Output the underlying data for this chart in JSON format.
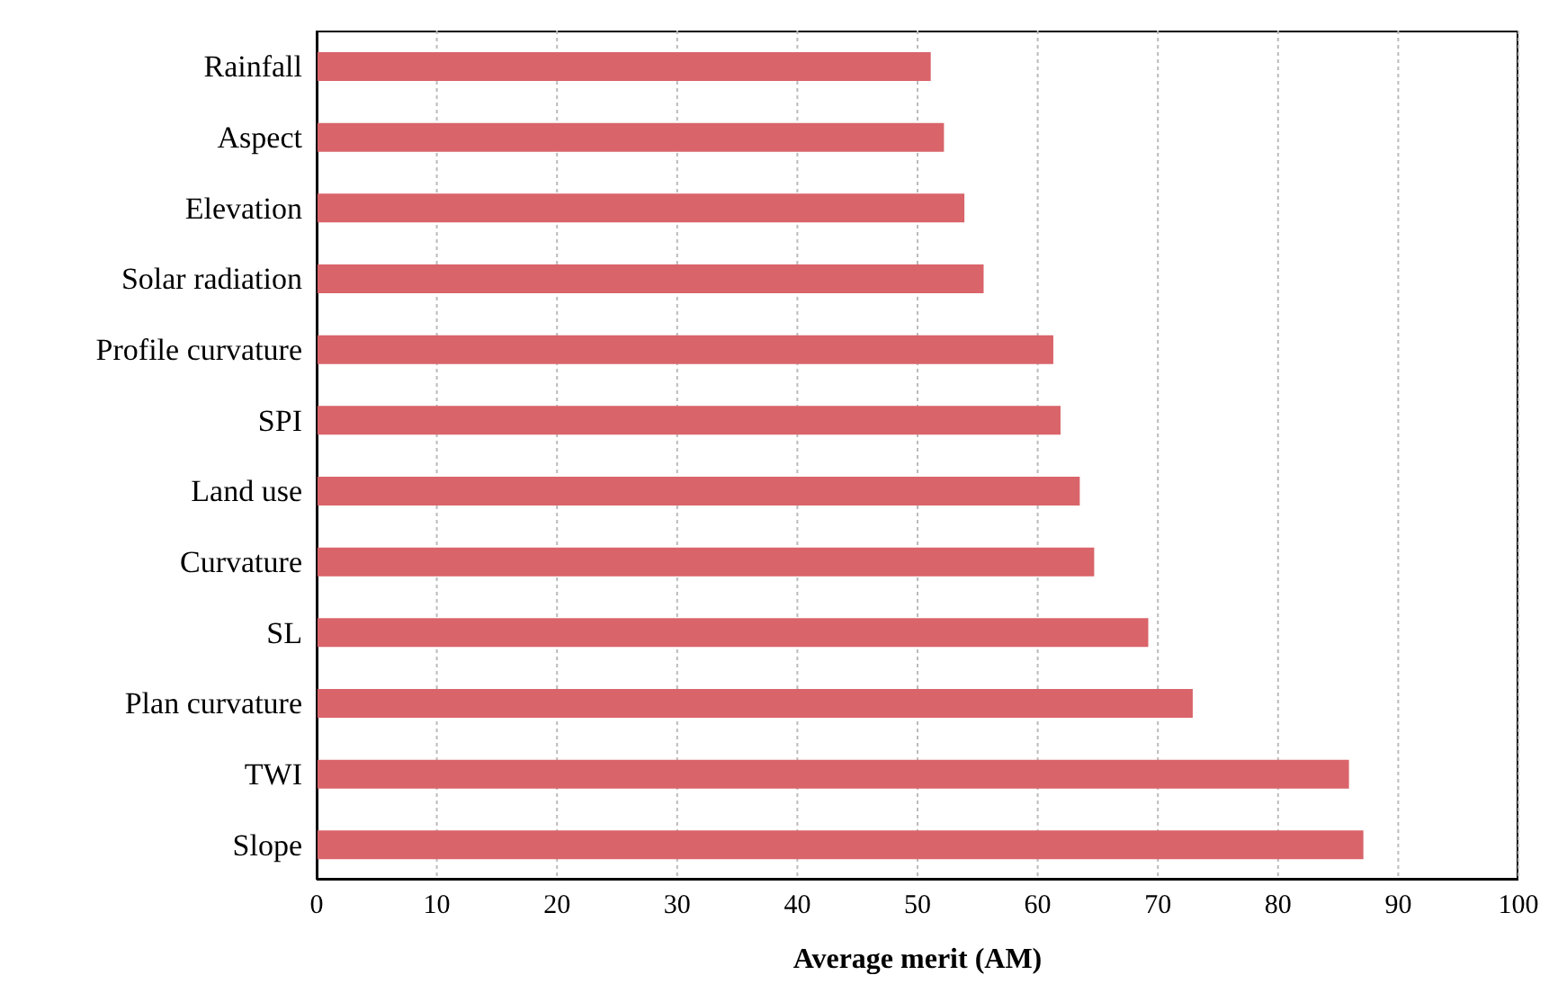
{
  "chart_data": {
    "type": "bar",
    "orientation": "horizontal",
    "xlabel": "Average merit (AM)",
    "categories": [
      "Rainfall",
      "Aspect",
      "Elevation",
      "Solar radiation",
      "Profile curvature",
      "SPI",
      "Land use",
      "Curvature",
      "SL",
      "Plan curvature",
      "TWI",
      "Slope"
    ],
    "values": [
      51.1,
      52.2,
      53.9,
      55.5,
      61.3,
      61.9,
      63.5,
      64.7,
      69.2,
      72.9,
      85.9,
      87.1
    ],
    "color": "#d9646a",
    "xlim": [
      0,
      100
    ],
    "xticks": [
      0,
      10,
      20,
      30,
      40,
      50,
      60,
      70,
      80,
      90,
      100
    ],
    "grid": "x"
  }
}
